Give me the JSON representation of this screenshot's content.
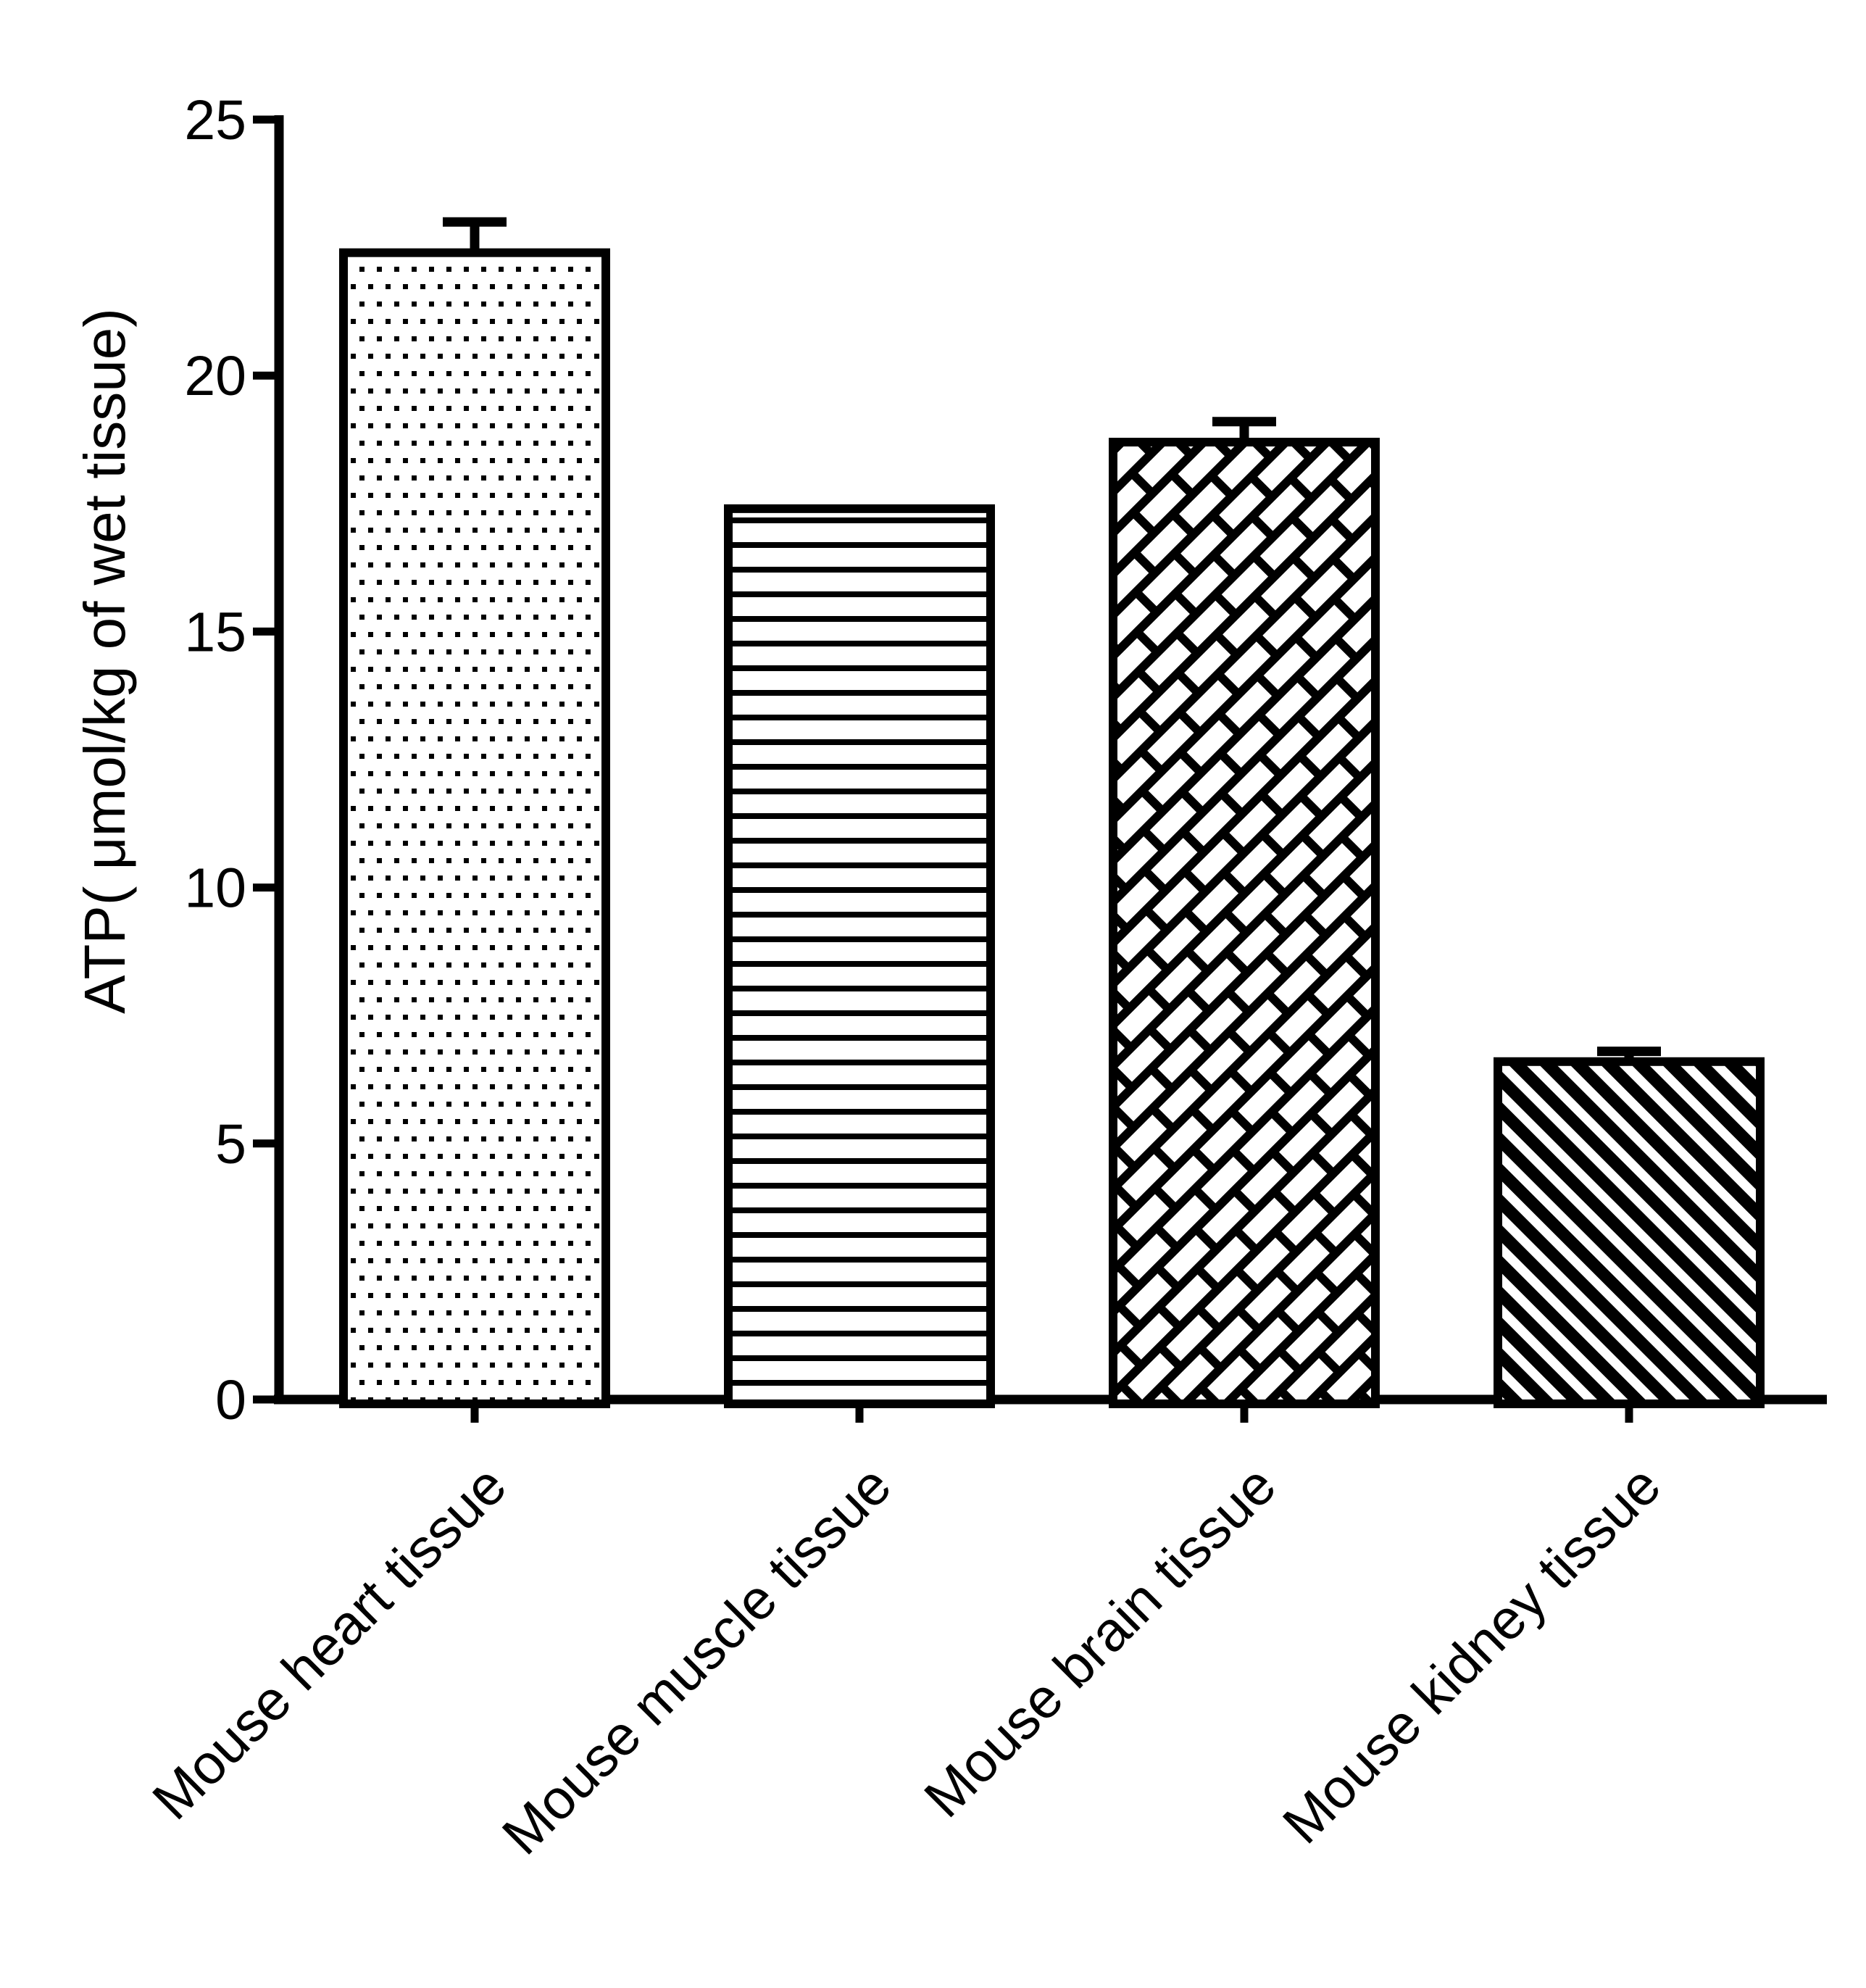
{
  "figure": {
    "background": "#ffffff",
    "ink": "#000000"
  },
  "chart_data": {
    "type": "bar",
    "title": "",
    "xlabel": "",
    "ylabel": "ATP( μmol/kg of wet tissue)",
    "ylim": [
      0,
      25
    ],
    "yticks": [
      0,
      5,
      10,
      15,
      20,
      25
    ],
    "grid": false,
    "legend": null,
    "categories": [
      "Mouse heart tissue",
      "Mouse muscle tissue",
      "Mouse brain tissue",
      "Mouse kidney tissue"
    ],
    "values": [
      22.4,
      17.4,
      18.7,
      6.6
    ],
    "errors_plus": [
      0.7,
      0,
      0.5,
      0.3
    ],
    "bar_fill_patterns": [
      "dots",
      "horizontal-lines",
      "diagonal-bricks",
      "diagonal-stripes"
    ],
    "bar_color": "#000000",
    "bar_background": "#ffffff"
  }
}
